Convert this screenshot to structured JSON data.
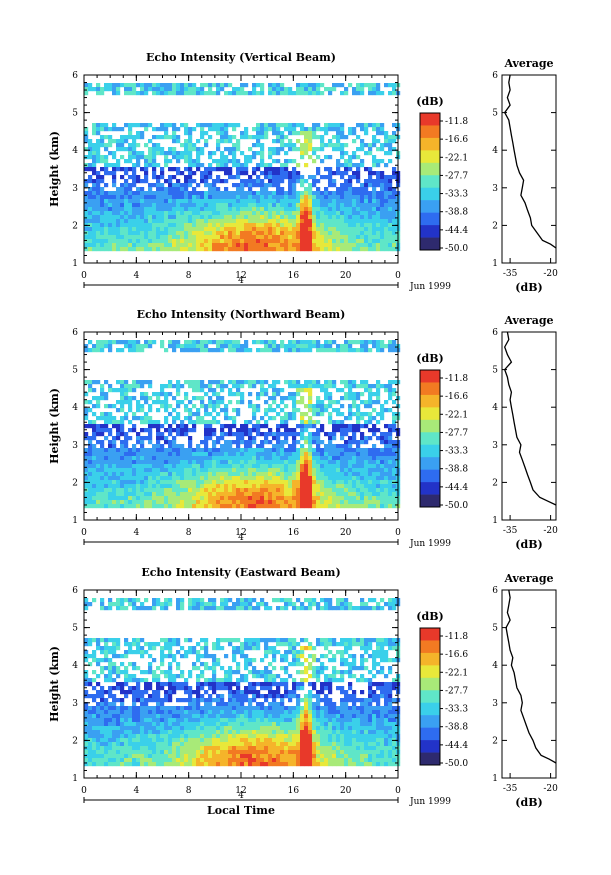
{
  "chart_data": [
    {
      "type": "heatmap",
      "title": "Echo Intensity (Vertical Beam)",
      "ylabel": "Height (km)",
      "xlabel": "",
      "x_ticks": [
        "0",
        "4",
        "8",
        "12",
        "16",
        "20",
        "0"
      ],
      "y_ticks": [
        "1",
        "2",
        "3",
        "4",
        "5",
        "6"
      ],
      "xlim": [
        0,
        24
      ],
      "ylim": [
        1,
        6
      ],
      "date_label": "Jun 1999",
      "day_label": "4",
      "colorbar": {
        "label": "(dB)",
        "ticks": [
          "-11.8",
          "-16.6",
          "-22.1",
          "-27.7",
          "-33.3",
          "-38.8",
          "-44.4",
          "-50.0"
        ]
      },
      "average": {
        "title": "Average",
        "xlabel": "(dB)",
        "x_ticks": [
          "-35",
          "-20"
        ],
        "y_ticks": [
          "1",
          "2",
          "3",
          "4",
          "5",
          "6"
        ],
        "xlim": [
          -38,
          -18
        ],
        "ylim": [
          1,
          6
        ],
        "height": [
          1.4,
          1.5,
          1.6,
          1.8,
          2.0,
          2.2,
          2.4,
          2.6,
          2.8,
          3.0,
          3.2,
          3.4,
          3.6,
          3.8,
          4.0,
          4.2,
          4.4,
          4.6,
          4.8,
          5.0,
          5.2,
          5.4,
          5.6,
          5.8,
          6.0
        ],
        "db": [
          -18,
          -20,
          -23,
          -25,
          -27,
          -27.5,
          -28.5,
          -29.5,
          -31,
          -30.5,
          -30,
          -31.5,
          -32.5,
          -33,
          -33.5,
          -34,
          -34.5,
          -35,
          -35.5,
          -37,
          -35,
          -36,
          -35,
          -35.5,
          -35
        ]
      }
    },
    {
      "type": "heatmap",
      "title": "Echo Intensity (Northward Beam)",
      "ylabel": "Height (km)",
      "xlabel": "",
      "x_ticks": [
        "0",
        "4",
        "8",
        "12",
        "16",
        "20",
        "0"
      ],
      "y_ticks": [
        "1",
        "2",
        "3",
        "4",
        "5",
        "6"
      ],
      "xlim": [
        0,
        24
      ],
      "ylim": [
        1,
        6
      ],
      "date_label": "Jun 1999",
      "day_label": "4",
      "colorbar": {
        "label": "(dB)",
        "ticks": [
          "-11.8",
          "-16.6",
          "-22.1",
          "-27.7",
          "-33.3",
          "-38.8",
          "-44.4",
          "-50.0"
        ]
      },
      "average": {
        "title": "Average",
        "xlabel": "(dB)",
        "x_ticks": [
          "-35",
          "-20"
        ],
        "y_ticks": [
          "1",
          "2",
          "3",
          "4",
          "5",
          "6"
        ],
        "xlim": [
          -38,
          -18
        ],
        "ylim": [
          1,
          6
        ],
        "height": [
          1.4,
          1.5,
          1.6,
          1.8,
          2.0,
          2.2,
          2.4,
          2.6,
          2.8,
          3.0,
          3.2,
          3.4,
          3.6,
          3.8,
          4.0,
          4.2,
          4.4,
          4.6,
          4.8,
          5.0,
          5.2,
          5.4,
          5.6,
          5.8,
          6.0
        ],
        "db": [
          -18,
          -21,
          -24,
          -26.5,
          -27.5,
          -28.5,
          -29.5,
          -30.5,
          -31.5,
          -31,
          -32.5,
          -33,
          -33.5,
          -34,
          -34.5,
          -35,
          -34.5,
          -35.5,
          -36,
          -37,
          -34.5,
          -36,
          -37,
          -35.5,
          -36
        ]
      }
    },
    {
      "type": "heatmap",
      "title": "Echo Intensity (Eastward Beam)",
      "ylabel": "Height (km)",
      "xlabel": "Local Time",
      "x_ticks": [
        "0",
        "4",
        "8",
        "12",
        "16",
        "20",
        "0"
      ],
      "y_ticks": [
        "1",
        "2",
        "3",
        "4",
        "5",
        "6"
      ],
      "xlim": [
        0,
        24
      ],
      "ylim": [
        1,
        6
      ],
      "date_label": "Jun 1999",
      "day_label": "4",
      "colorbar": {
        "label": "(dB)",
        "ticks": [
          "-11.8",
          "-16.6",
          "-22.1",
          "-27.7",
          "-33.3",
          "-38.8",
          "-44.4",
          "-50.0"
        ]
      },
      "average": {
        "title": "Average",
        "xlabel": "(dB)",
        "x_ticks": [
          "-35",
          "-20"
        ],
        "y_ticks": [
          "1",
          "2",
          "3",
          "4",
          "5",
          "6"
        ],
        "xlim": [
          -38,
          -18
        ],
        "ylim": [
          1,
          6
        ],
        "height": [
          1.4,
          1.5,
          1.6,
          1.8,
          2.0,
          2.2,
          2.4,
          2.6,
          2.8,
          3.0,
          3.2,
          3.4,
          3.6,
          3.8,
          4.0,
          4.2,
          4.4,
          4.6,
          4.8,
          5.0,
          5.2,
          5.4,
          5.6,
          5.8,
          6.0
        ],
        "db": [
          -18,
          -20.5,
          -23.5,
          -25.5,
          -26.5,
          -28,
          -29,
          -30,
          -31,
          -30.5,
          -31,
          -32.5,
          -33,
          -33.5,
          -34.5,
          -34,
          -35,
          -35.5,
          -36,
          -36.5,
          -35,
          -36,
          -35.5,
          -35,
          -35.5
        ]
      }
    }
  ],
  "palette": [
    "#2e2a6e",
    "#2233c8",
    "#2e6cf0",
    "#3aa0f2",
    "#3ad0ea",
    "#5fe6c8",
    "#a8ea78",
    "#e8e83a",
    "#f5b42a",
    "#f27a22",
    "#e8392a"
  ]
}
